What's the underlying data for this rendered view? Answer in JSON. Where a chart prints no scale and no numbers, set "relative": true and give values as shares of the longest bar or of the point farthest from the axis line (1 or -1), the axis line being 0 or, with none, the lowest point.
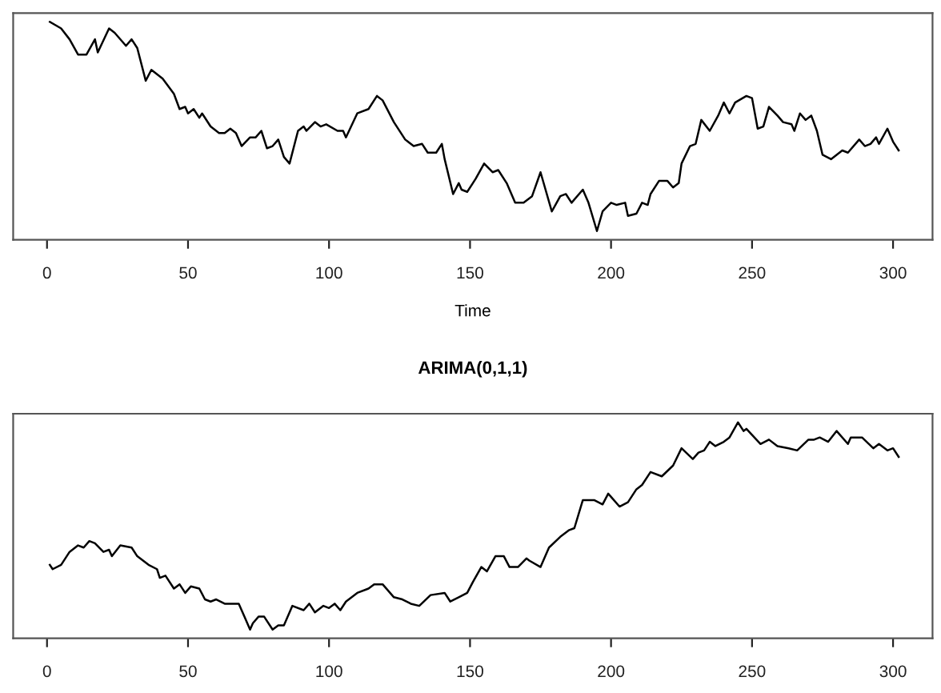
{
  "chart_data": [
    {
      "type": "line",
      "xlabel": "Time",
      "relative": true,
      "tick_labels": "x",
      "grid": false,
      "legend": false,
      "xlim": [
        -12,
        314
      ],
      "xticks": [
        0,
        50,
        100,
        150,
        200,
        250,
        300
      ],
      "series": [
        {
          "color": "#000000",
          "x": [
            1,
            5,
            8,
            11,
            14,
            17,
            18,
            22,
            24,
            28,
            30,
            32,
            35,
            37,
            41,
            45,
            47,
            49,
            50,
            52,
            54,
            55,
            58,
            61,
            63,
            65,
            67,
            69,
            72,
            74,
            76,
            78,
            80,
            82,
            84,
            86,
            89,
            91,
            92,
            95,
            97,
            99,
            103,
            105,
            106,
            110,
            114,
            117,
            119,
            123,
            127,
            130,
            133,
            135,
            138,
            140,
            141,
            144,
            146,
            147,
            149,
            151,
            152,
            155,
            158,
            160,
            163,
            166,
            169,
            172,
            175,
            179,
            182,
            184,
            186,
            190,
            192,
            195,
            197,
            200,
            202,
            205,
            206,
            209,
            211,
            213,
            214,
            217,
            220,
            222,
            224,
            225,
            228,
            230,
            232,
            235,
            238,
            240,
            242,
            244,
            248,
            250,
            252,
            254,
            256,
            259,
            261,
            264,
            265,
            267,
            269,
            271,
            273,
            275,
            278,
            280,
            282,
            284,
            288,
            290,
            292,
            294,
            295,
            298,
            300,
            302
          ],
          "values": [
            1.0,
            0.97,
            0.92,
            0.85,
            0.85,
            0.92,
            0.86,
            0.97,
            0.95,
            0.89,
            0.92,
            0.88,
            0.73,
            0.78,
            0.74,
            0.67,
            0.6,
            0.61,
            0.58,
            0.6,
            0.56,
            0.58,
            0.52,
            0.49,
            0.49,
            0.51,
            0.49,
            0.43,
            0.47,
            0.47,
            0.5,
            0.42,
            0.43,
            0.46,
            0.38,
            0.35,
            0.5,
            0.52,
            0.5,
            0.54,
            0.52,
            0.53,
            0.5,
            0.5,
            0.47,
            0.58,
            0.6,
            0.66,
            0.64,
            0.54,
            0.46,
            0.43,
            0.44,
            0.4,
            0.4,
            0.44,
            0.37,
            0.21,
            0.26,
            0.23,
            0.22,
            0.26,
            0.28,
            0.35,
            0.31,
            0.32,
            0.26,
            0.17,
            0.17,
            0.2,
            0.31,
            0.13,
            0.2,
            0.21,
            0.17,
            0.23,
            0.17,
            0.04,
            0.13,
            0.17,
            0.16,
            0.17,
            0.11,
            0.12,
            0.17,
            0.16,
            0.21,
            0.27,
            0.27,
            0.24,
            0.26,
            0.35,
            0.43,
            0.44,
            0.55,
            0.5,
            0.57,
            0.63,
            0.58,
            0.63,
            0.66,
            0.65,
            0.51,
            0.52,
            0.61,
            0.57,
            0.54,
            0.53,
            0.5,
            0.58,
            0.55,
            0.57,
            0.5,
            0.39,
            0.37,
            0.39,
            0.41,
            0.4,
            0.46,
            0.43,
            0.44,
            0.47,
            0.44,
            0.51,
            0.45,
            0.41
          ]
        }
      ]
    },
    {
      "type": "line",
      "title": "ARIMA(0,1,1)",
      "relative": true,
      "tick_labels": "x",
      "grid": false,
      "legend": false,
      "xlim": [
        -12,
        314
      ],
      "xticks": [
        0,
        50,
        100,
        150,
        200,
        250,
        300
      ],
      "series": [
        {
          "color": "#000000",
          "x": [
            1,
            2,
            5,
            8,
            11,
            13,
            15,
            17,
            20,
            22,
            23,
            26,
            30,
            32,
            36,
            39,
            40,
            42,
            45,
            47,
            49,
            51,
            54,
            56,
            58,
            60,
            63,
            68,
            70,
            72,
            73,
            75,
            77,
            80,
            82,
            84,
            87,
            91,
            93,
            95,
            98,
            100,
            102,
            104,
            106,
            110,
            114,
            116,
            119,
            123,
            126,
            129,
            132,
            136,
            141,
            143,
            146,
            149,
            151,
            154,
            156,
            159,
            162,
            164,
            167,
            170,
            171,
            175,
            178,
            182,
            185,
            187,
            190,
            194,
            197,
            199,
            203,
            206,
            209,
            211,
            214,
            218,
            222,
            225,
            229,
            231,
            233,
            235,
            237,
            240,
            242,
            245,
            247,
            248,
            253,
            256,
            259,
            263,
            266,
            270,
            272,
            274,
            277,
            280,
            284,
            285,
            289,
            293,
            295,
            298,
            300,
            302
          ],
          "values": [
            0.34,
            0.32,
            0.34,
            0.4,
            0.43,
            0.42,
            0.45,
            0.44,
            0.4,
            0.41,
            0.38,
            0.43,
            0.42,
            0.38,
            0.34,
            0.32,
            0.28,
            0.29,
            0.23,
            0.25,
            0.21,
            0.24,
            0.23,
            0.18,
            0.17,
            0.18,
            0.16,
            0.16,
            0.1,
            0.04,
            0.07,
            0.1,
            0.1,
            0.04,
            0.06,
            0.06,
            0.15,
            0.13,
            0.16,
            0.12,
            0.15,
            0.14,
            0.16,
            0.13,
            0.17,
            0.21,
            0.23,
            0.25,
            0.25,
            0.19,
            0.18,
            0.16,
            0.15,
            0.2,
            0.21,
            0.17,
            0.19,
            0.21,
            0.26,
            0.33,
            0.31,
            0.38,
            0.38,
            0.33,
            0.33,
            0.37,
            0.36,
            0.33,
            0.42,
            0.47,
            0.5,
            0.51,
            0.64,
            0.64,
            0.62,
            0.67,
            0.61,
            0.63,
            0.69,
            0.71,
            0.77,
            0.75,
            0.8,
            0.88,
            0.83,
            0.86,
            0.87,
            0.91,
            0.89,
            0.91,
            0.93,
            1.0,
            0.96,
            0.97,
            0.9,
            0.92,
            0.89,
            0.88,
            0.87,
            0.92,
            0.92,
            0.93,
            0.91,
            0.96,
            0.9,
            0.93,
            0.93,
            0.88,
            0.9,
            0.87,
            0.88,
            0.84
          ]
        }
      ]
    }
  ]
}
